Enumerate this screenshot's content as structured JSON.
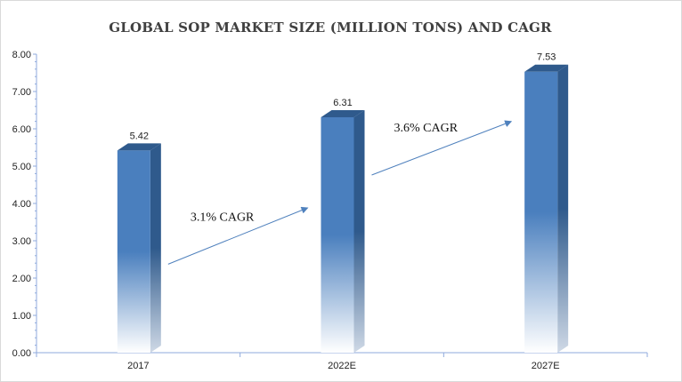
{
  "chart_data": {
    "type": "bar",
    "title": "GLOBAL SOP MARKET SIZE (MILLION TONS) AND CAGR",
    "categories": [
      "2017",
      "2022E",
      "2027E"
    ],
    "values": [
      5.42,
      6.31,
      7.53
    ],
    "data_labels": [
      "5.42",
      "6.31",
      "7.53"
    ],
    "ylim": [
      0,
      8
    ],
    "yticks": [
      "0.00",
      "1.00",
      "2.00",
      "3.00",
      "4.00",
      "5.00",
      "6.00",
      "7.00",
      "8.00"
    ],
    "grid": false,
    "bar_color": "#4f81bd",
    "annotations": [
      {
        "text": "3.1% CAGR",
        "from_category": "2017",
        "to_category": "2022E"
      },
      {
        "text": "3.6% CAGR",
        "from_category": "2022E",
        "to_category": "2027E"
      }
    ]
  }
}
